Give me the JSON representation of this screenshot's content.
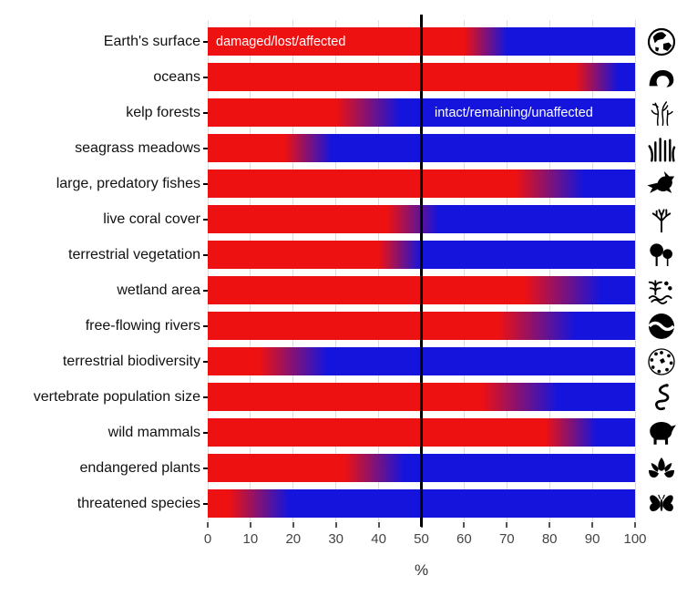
{
  "chart_data": {
    "type": "bar",
    "orientation": "horizontal",
    "title": "",
    "xlabel": "%",
    "xlim": [
      0,
      100
    ],
    "x_ticks": [
      0,
      10,
      20,
      30,
      40,
      50,
      60,
      70,
      80,
      90,
      100
    ],
    "grid": "vertical",
    "reference_line_x": 50,
    "colors": {
      "damaged": "#ee1111",
      "intact": "#1414dd",
      "reference_line": "#000000",
      "gridline": "#dcdcdc"
    },
    "annotations": {
      "damaged_label": "damaged/lost/affected",
      "intact_label": "intact/remaining/unaffected"
    },
    "categories": [
      "Earth's surface",
      "oceans",
      "kelp forests",
      "seagrass meadows",
      "large, predatory fishes",
      "live coral cover",
      "terrestrial vegetation",
      "wetland area",
      "free-flowing rivers",
      "terrestrial biodiversity",
      "vertebrate population size",
      "wild mammals",
      "endangered plants",
      "threatened species"
    ],
    "series": [
      {
        "name": "damaged/lost/affected",
        "color": "#ee1111",
        "values": [
          65,
          91,
          38,
          23,
          80,
          48,
          45,
          83,
          77,
          20,
          73,
          85,
          39,
          12
        ]
      },
      {
        "name": "intact/remaining/unaffected",
        "color": "#1414dd",
        "values": [
          35,
          9,
          62,
          77,
          20,
          52,
          55,
          17,
          23,
          80,
          27,
          15,
          61,
          88
        ]
      }
    ],
    "rows": [
      {
        "label": "Earth's surface",
        "icon": "globe-icon",
        "damaged_pct": 65,
        "gradient_start": 60,
        "gradient_end": 70
      },
      {
        "label": "oceans",
        "icon": "ocean-wave-icon",
        "damaged_pct": 91,
        "gradient_start": 86,
        "gradient_end": 96
      },
      {
        "label": "kelp forests",
        "icon": "kelp-icon",
        "damaged_pct": 38,
        "gradient_start": 30,
        "gradient_end": 45
      },
      {
        "label": "seagrass meadows",
        "icon": "seagrass-icon",
        "damaged_pct": 23,
        "gradient_start": 18,
        "gradient_end": 29
      },
      {
        "label": "large, predatory fishes",
        "icon": "marlin-icon",
        "damaged_pct": 80,
        "gradient_start": 72,
        "gradient_end": 88
      },
      {
        "label": "live coral cover",
        "icon": "coral-icon",
        "damaged_pct": 48,
        "gradient_start": 42,
        "gradient_end": 54
      },
      {
        "label": "terrestrial vegetation",
        "icon": "trees-icon",
        "damaged_pct": 45,
        "gradient_start": 40,
        "gradient_end": 50
      },
      {
        "label": "wetland area",
        "icon": "wetland-icon",
        "damaged_pct": 83,
        "gradient_start": 74,
        "gradient_end": 92
      },
      {
        "label": "free-flowing rivers",
        "icon": "river-icon",
        "damaged_pct": 77,
        "gradient_start": 68,
        "gradient_end": 86
      },
      {
        "label": "terrestrial biodiversity",
        "icon": "biodiversity-icon",
        "damaged_pct": 20,
        "gradient_start": 12,
        "gradient_end": 28
      },
      {
        "label": "vertebrate population size",
        "icon": "snake-icon",
        "damaged_pct": 73,
        "gradient_start": 64,
        "gradient_end": 82
      },
      {
        "label": "wild mammals",
        "icon": "rhino-icon",
        "damaged_pct": 85,
        "gradient_start": 79,
        "gradient_end": 91
      },
      {
        "label": "endangered plants",
        "icon": "lotus-icon",
        "damaged_pct": 39,
        "gradient_start": 32,
        "gradient_end": 46
      },
      {
        "label": "threatened species",
        "icon": "butterfly-icon",
        "damaged_pct": 12,
        "gradient_start": 5,
        "gradient_end": 19
      }
    ]
  }
}
